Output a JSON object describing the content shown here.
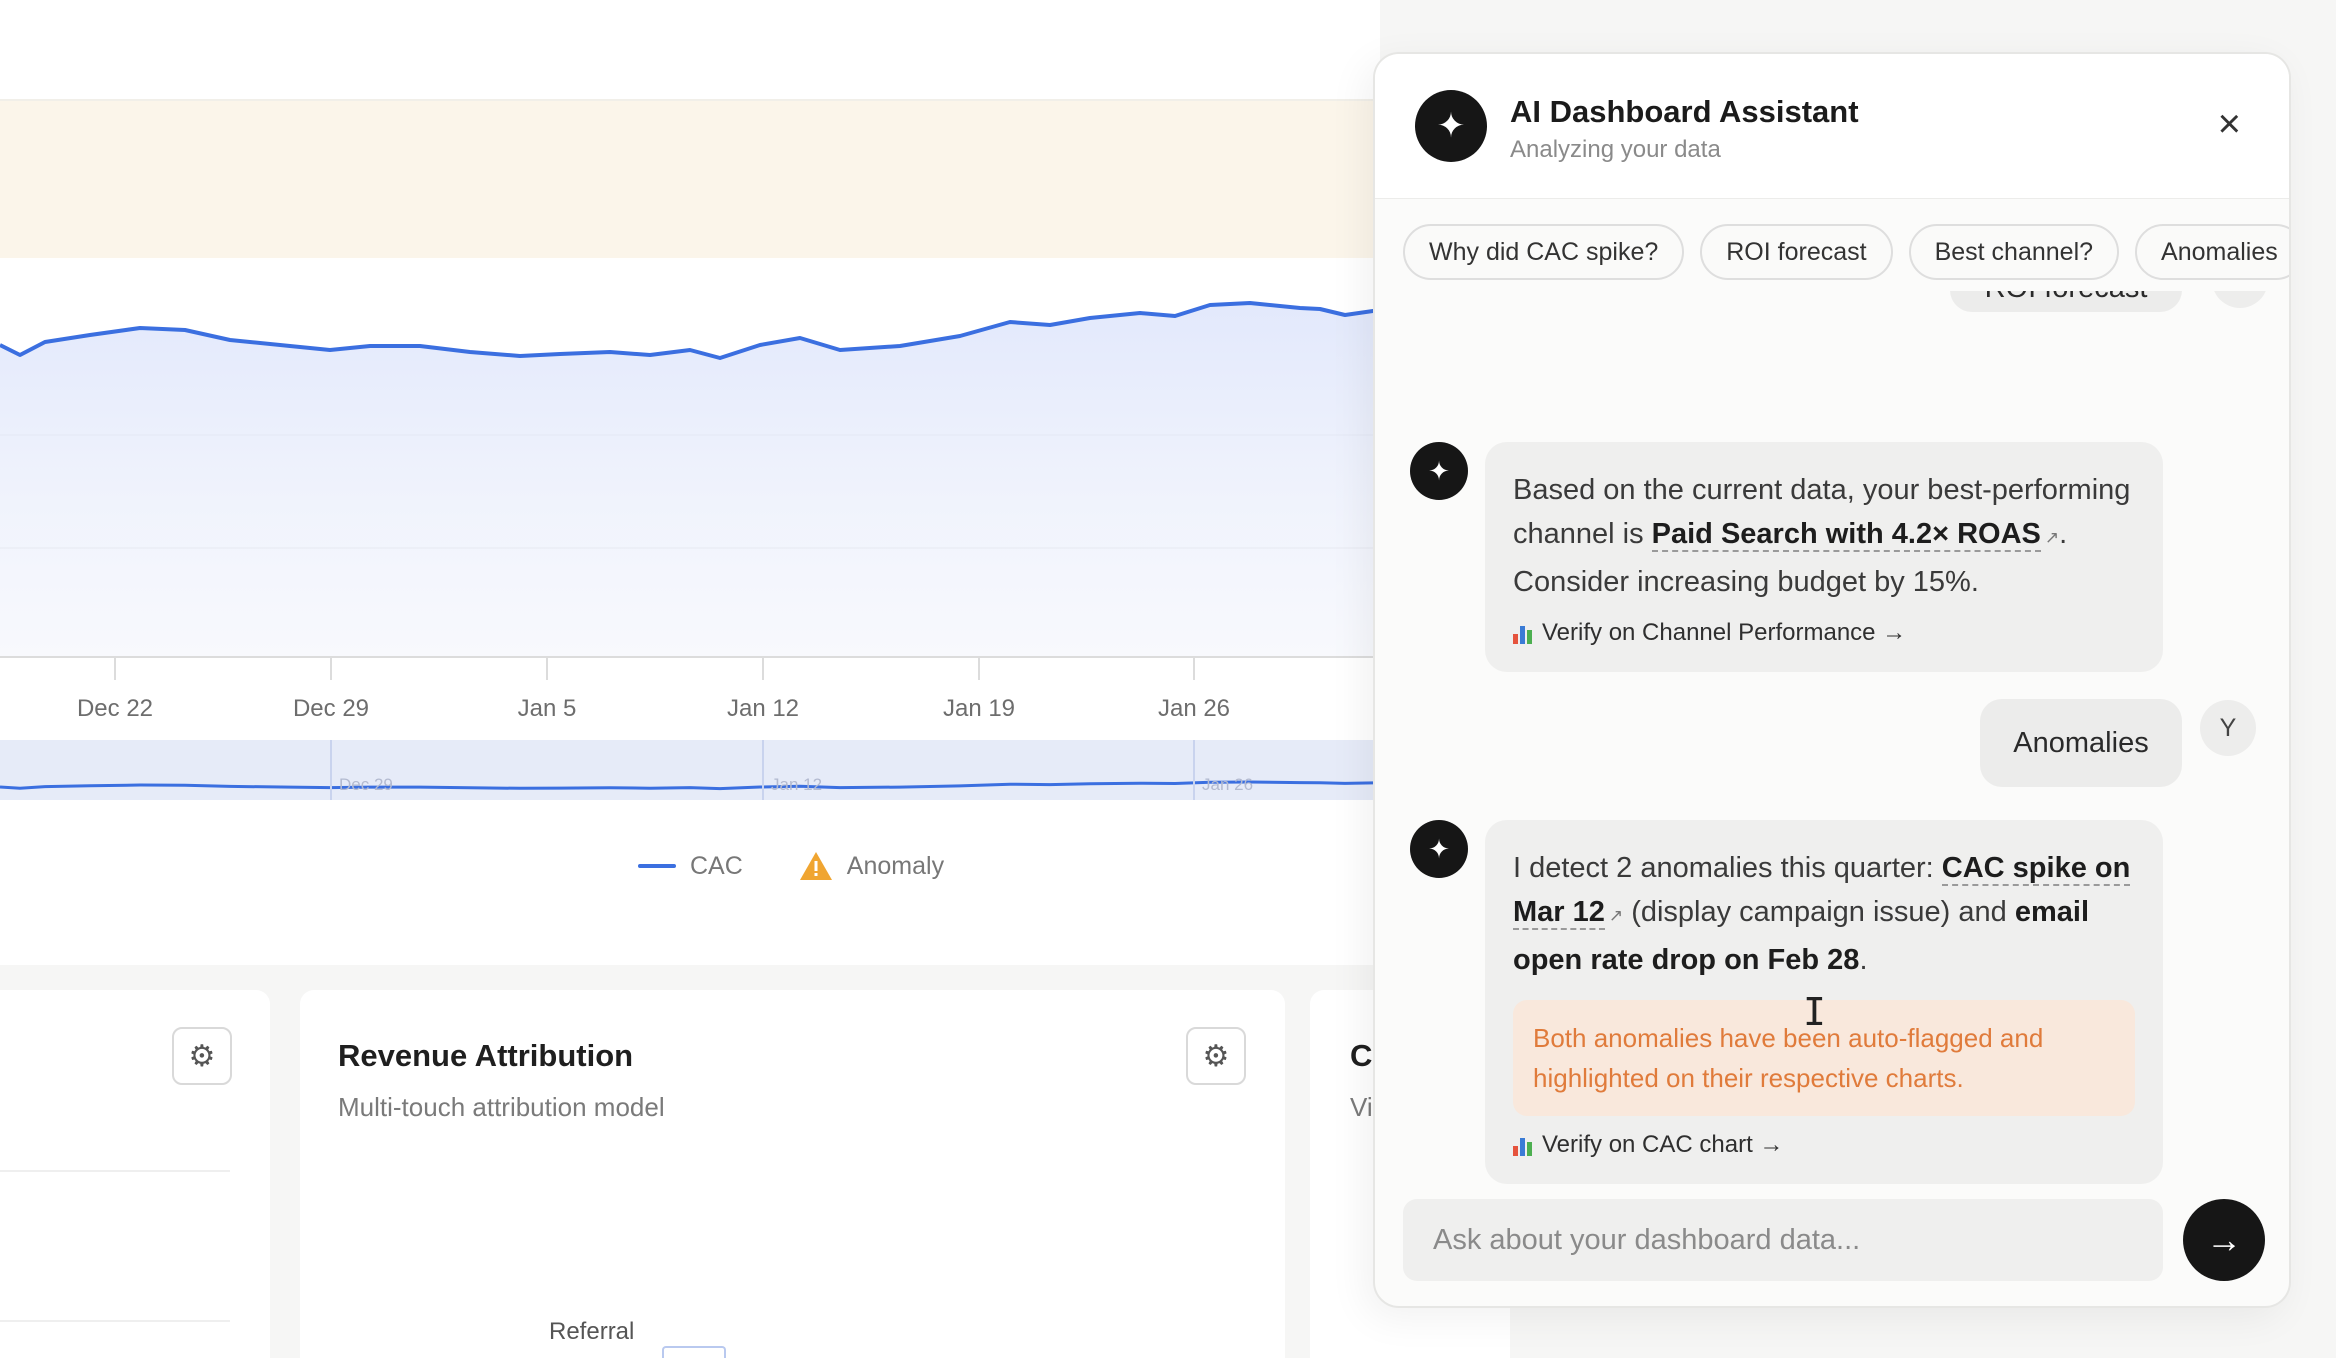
{
  "chart": {
    "x_ticks": [
      "Dec 22",
      "Dec 29",
      "Jan 5",
      "Jan 12",
      "Jan 19",
      "Jan 26"
    ],
    "mini_ticks": [
      "Dec 29",
      "Jan 12",
      "Jan 26"
    ],
    "line_color": "#3b6fe0",
    "anomaly_color": "#f0a531",
    "legend": [
      {
        "label": "CAC",
        "icon": "line-icon"
      },
      {
        "label": "Anomaly",
        "icon": "warning-triangle-icon"
      }
    ]
  },
  "cards": {
    "revenue": {
      "title": "Revenue Attribution",
      "subtitle": "Multi-touch attribution model",
      "donut_label": "Referral"
    },
    "right_card": {
      "title": "C",
      "subtitle": "Vi"
    }
  },
  "assistant": {
    "title": "AI Dashboard Assistant",
    "subtitle": "Analyzing your data",
    "close_icon": "×",
    "chips": [
      "Why did CAC spike?",
      "ROI forecast",
      "Best channel?",
      "Anomalies"
    ],
    "messages": {
      "user_1": "ROI forecast",
      "ai_1": {
        "text_a": "Based on the current data, your best-performing channel is ",
        "highlight": "Paid Search with 4.2× ROAS",
        "text_b": ". Consider increasing budget by 15%.",
        "verify": "Verify on Channel Performance →"
      },
      "user_2": "Anomalies",
      "user_avatar": "Y",
      "ai_2": {
        "text_a": "I detect 2 anomalies this quarter: ",
        "highlight_1": "CAC spike on Mar 12",
        "text_b": " (display campaign issue) and ",
        "highlight_2": "email open rate drop on Feb 28",
        "text_c": ".",
        "callout": "Both anomalies have been auto-flagged and highlighted on their respective charts.",
        "verify": "Verify on CAC chart →"
      }
    },
    "input_placeholder": "Ask about your dashboard data...",
    "send_icon": "→"
  }
}
